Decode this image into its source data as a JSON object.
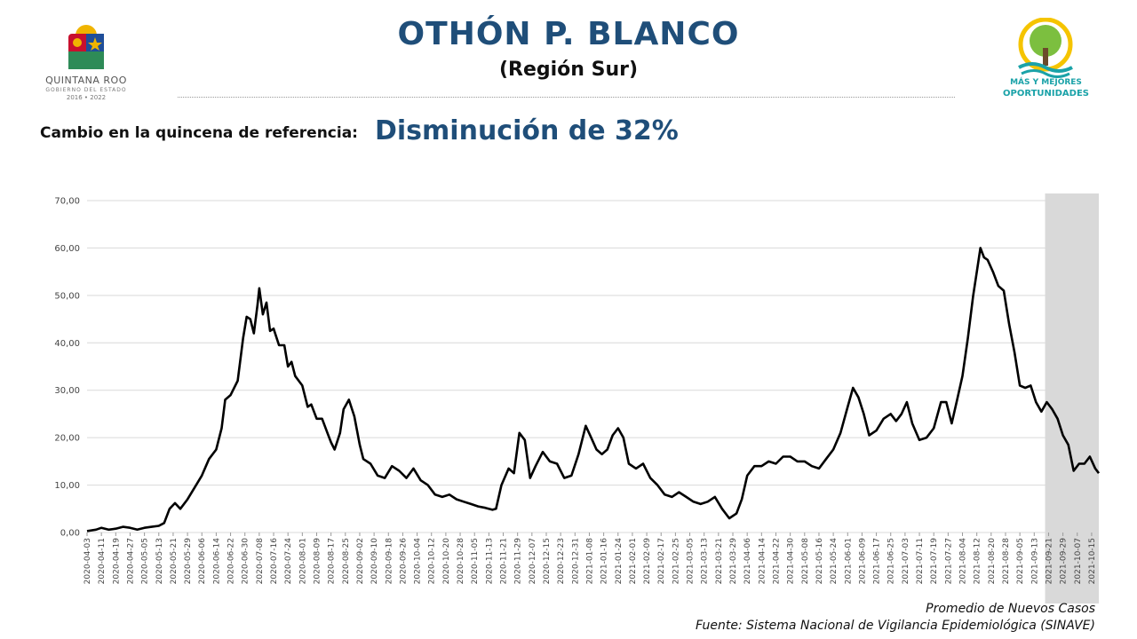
{
  "header": {
    "title": "OTHÓN P. BLANCO",
    "subtitle": "(Región Sur)"
  },
  "left_logo": {
    "brand": "QUINTANA ROO",
    "brand_sub": "GOBIERNO DEL ESTADO",
    "years": "2016 • 2022",
    "icon": "state-coat-of-arms-icon"
  },
  "right_logo": {
    "line1": "MÁS Y MEJORES",
    "line2": "OPORTUNIDADES",
    "icon": "tree-sun-logo-icon"
  },
  "change": {
    "label": "Cambio en la quincena de referencia:",
    "value": "Disminución de 32%"
  },
  "footer": {
    "series_label": "Promedio de Nuevos Casos",
    "source": "Fuente: Sistema Nacional de Vigilancia Epidemiológica (SINAVE)"
  },
  "colors": {
    "title": "#1f4e79",
    "line": "#000000",
    "grid": "#d9d9d9",
    "shade": "#d9d9d9",
    "logo_accent": "#1aa2a8"
  },
  "chart_data": {
    "type": "line",
    "title": "",
    "xlabel": "",
    "ylabel": "",
    "ylim": [
      0,
      70
    ],
    "yticks": [
      "0,00",
      "10,00",
      "20,00",
      "30,00",
      "40,00",
      "50,00",
      "60,00",
      "70,00"
    ],
    "grid": true,
    "legend": "none",
    "shaded_region": {
      "from": "2021-09-25",
      "to": "2021-10-19"
    },
    "x_ticks": [
      "2020-04-03",
      "2020-04-11",
      "2020-04-19",
      "2020-04-27",
      "2020-05-05",
      "2020-05-13",
      "2020-05-21",
      "2020-05-29",
      "2020-06-06",
      "2020-06-14",
      "2020-06-22",
      "2020-06-30",
      "2020-07-08",
      "2020-07-16",
      "2020-07-24",
      "2020-08-01",
      "2020-08-09",
      "2020-08-17",
      "2020-08-25",
      "2020-09-02",
      "2020-09-10",
      "2020-09-18",
      "2020-09-26",
      "2020-10-04",
      "2020-10-12",
      "2020-10-20",
      "2020-10-28",
      "2020-11-05",
      "2020-11-13",
      "2020-11-21",
      "2020-11-29",
      "2020-12-07",
      "2020-12-15",
      "2020-12-23",
      "2020-12-31",
      "2021-01-08",
      "2021-01-16",
      "2021-01-24",
      "2021-02-01",
      "2021-02-09",
      "2021-02-17",
      "2021-02-25",
      "2021-03-05",
      "2021-03-13",
      "2021-03-21",
      "2021-03-29",
      "2021-04-06",
      "2021-04-14",
      "2021-04-22",
      "2021-04-30",
      "2021-05-08",
      "2021-05-16",
      "2021-05-24",
      "2021-06-01",
      "2021-06-09",
      "2021-06-17",
      "2021-06-25",
      "2021-07-03",
      "2021-07-11",
      "2021-07-19",
      "2021-07-27",
      "2021-08-04",
      "2021-08-12",
      "2021-08-20",
      "2021-08-28",
      "2021-09-05",
      "2021-09-13",
      "2021-09-21",
      "2021-09-29",
      "2021-10-07",
      "2021-10-15"
    ],
    "series": [
      {
        "points": [
          [
            "2020-04-03",
            0.3
          ],
          [
            "2020-04-08",
            0.6
          ],
          [
            "2020-04-11",
            1.0
          ],
          [
            "2020-04-15",
            0.6
          ],
          [
            "2020-04-19",
            0.8
          ],
          [
            "2020-04-23",
            1.2
          ],
          [
            "2020-04-27",
            1.0
          ],
          [
            "2020-05-01",
            0.6
          ],
          [
            "2020-05-05",
            1.0
          ],
          [
            "2020-05-09",
            1.2
          ],
          [
            "2020-05-13",
            1.4
          ],
          [
            "2020-05-16",
            2.0
          ],
          [
            "2020-05-19",
            5.0
          ],
          [
            "2020-05-22",
            6.2
          ],
          [
            "2020-05-25",
            5.0
          ],
          [
            "2020-05-29",
            7.0
          ],
          [
            "2020-06-02",
            9.5
          ],
          [
            "2020-06-06",
            12.0
          ],
          [
            "2020-06-10",
            15.5
          ],
          [
            "2020-06-14",
            17.5
          ],
          [
            "2020-06-17",
            22.0
          ],
          [
            "2020-06-19",
            28.0
          ],
          [
            "2020-06-22",
            29.0
          ],
          [
            "2020-06-26",
            32.0
          ],
          [
            "2020-06-29",
            41.0
          ],
          [
            "2020-07-01",
            45.5
          ],
          [
            "2020-07-03",
            45.0
          ],
          [
            "2020-07-05",
            42.0
          ],
          [
            "2020-07-07",
            48.0
          ],
          [
            "2020-07-08",
            51.5
          ],
          [
            "2020-07-10",
            46.0
          ],
          [
            "2020-07-12",
            48.5
          ],
          [
            "2020-07-14",
            42.5
          ],
          [
            "2020-07-16",
            43.0
          ],
          [
            "2020-07-19",
            39.5
          ],
          [
            "2020-07-22",
            39.5
          ],
          [
            "2020-07-24",
            35.0
          ],
          [
            "2020-07-26",
            36.0
          ],
          [
            "2020-07-28",
            33.0
          ],
          [
            "2020-08-01",
            31.0
          ],
          [
            "2020-08-04",
            26.5
          ],
          [
            "2020-08-06",
            27.0
          ],
          [
            "2020-08-09",
            24.0
          ],
          [
            "2020-08-12",
            24.0
          ],
          [
            "2020-08-15",
            21.0
          ],
          [
            "2020-08-17",
            19.0
          ],
          [
            "2020-08-19",
            17.5
          ],
          [
            "2020-08-22",
            21.0
          ],
          [
            "2020-08-24",
            26.0
          ],
          [
            "2020-08-27",
            28.0
          ],
          [
            "2020-08-30",
            24.5
          ],
          [
            "2020-09-02",
            18.5
          ],
          [
            "2020-09-04",
            15.5
          ],
          [
            "2020-09-08",
            14.5
          ],
          [
            "2020-09-12",
            12.0
          ],
          [
            "2020-09-16",
            11.5
          ],
          [
            "2020-09-20",
            14.0
          ],
          [
            "2020-09-24",
            13.0
          ],
          [
            "2020-09-28",
            11.5
          ],
          [
            "2020-10-02",
            13.5
          ],
          [
            "2020-10-06",
            11.0
          ],
          [
            "2020-10-10",
            10.0
          ],
          [
            "2020-10-14",
            8.0
          ],
          [
            "2020-10-18",
            7.5
          ],
          [
            "2020-10-22",
            8.0
          ],
          [
            "2020-10-26",
            7.0
          ],
          [
            "2020-10-30",
            6.5
          ],
          [
            "2020-11-03",
            6.0
          ],
          [
            "2020-11-07",
            5.5
          ],
          [
            "2020-11-11",
            5.2
          ],
          [
            "2020-11-15",
            4.8
          ],
          [
            "2020-11-17",
            5.0
          ],
          [
            "2020-11-20",
            10.0
          ],
          [
            "2020-11-24",
            13.5
          ],
          [
            "2020-11-27",
            12.5
          ],
          [
            "2020-11-30",
            21.0
          ],
          [
            "2020-12-03",
            19.5
          ],
          [
            "2020-12-06",
            11.5
          ],
          [
            "2020-12-09",
            14.0
          ],
          [
            "2020-12-13",
            17.0
          ],
          [
            "2020-12-17",
            15.0
          ],
          [
            "2020-12-21",
            14.5
          ],
          [
            "2020-12-25",
            11.5
          ],
          [
            "2020-12-29",
            12.0
          ],
          [
            "2021-01-02",
            16.5
          ],
          [
            "2021-01-06",
            22.5
          ],
          [
            "2021-01-09",
            20.0
          ],
          [
            "2021-01-12",
            17.5
          ],
          [
            "2021-01-15",
            16.5
          ],
          [
            "2021-01-18",
            17.5
          ],
          [
            "2021-01-21",
            20.5
          ],
          [
            "2021-01-24",
            22.0
          ],
          [
            "2021-01-27",
            20.0
          ],
          [
            "2021-01-30",
            14.5
          ],
          [
            "2021-02-03",
            13.5
          ],
          [
            "2021-02-07",
            14.5
          ],
          [
            "2021-02-11",
            11.5
          ],
          [
            "2021-02-15",
            10.0
          ],
          [
            "2021-02-19",
            8.0
          ],
          [
            "2021-02-23",
            7.5
          ],
          [
            "2021-02-27",
            8.5
          ],
          [
            "2021-03-03",
            7.5
          ],
          [
            "2021-03-07",
            6.5
          ],
          [
            "2021-03-11",
            6.0
          ],
          [
            "2021-03-15",
            6.5
          ],
          [
            "2021-03-19",
            7.5
          ],
          [
            "2021-03-23",
            5.0
          ],
          [
            "2021-03-27",
            3.0
          ],
          [
            "2021-03-31",
            4.0
          ],
          [
            "2021-04-03",
            7.0
          ],
          [
            "2021-04-06",
            12.0
          ],
          [
            "2021-04-10",
            14.0
          ],
          [
            "2021-04-14",
            14.0
          ],
          [
            "2021-04-18",
            15.0
          ],
          [
            "2021-04-22",
            14.5
          ],
          [
            "2021-04-26",
            16.0
          ],
          [
            "2021-04-30",
            16.0
          ],
          [
            "2021-05-04",
            15.0
          ],
          [
            "2021-05-08",
            15.0
          ],
          [
            "2021-05-12",
            14.0
          ],
          [
            "2021-05-16",
            13.5
          ],
          [
            "2021-05-20",
            15.5
          ],
          [
            "2021-05-24",
            17.5
          ],
          [
            "2021-05-28",
            21.0
          ],
          [
            "2021-06-01",
            26.5
          ],
          [
            "2021-06-04",
            30.5
          ],
          [
            "2021-06-07",
            28.5
          ],
          [
            "2021-06-10",
            25.0
          ],
          [
            "2021-06-13",
            20.5
          ],
          [
            "2021-06-17",
            21.5
          ],
          [
            "2021-06-21",
            24.0
          ],
          [
            "2021-06-25",
            25.0
          ],
          [
            "2021-06-28",
            23.5
          ],
          [
            "2021-07-01",
            25.0
          ],
          [
            "2021-07-04",
            27.5
          ],
          [
            "2021-07-07",
            23.0
          ],
          [
            "2021-07-11",
            19.5
          ],
          [
            "2021-07-15",
            20.0
          ],
          [
            "2021-07-19",
            22.0
          ],
          [
            "2021-07-23",
            27.5
          ],
          [
            "2021-07-26",
            27.5
          ],
          [
            "2021-07-29",
            23.0
          ],
          [
            "2021-08-01",
            28.0
          ],
          [
            "2021-08-04",
            33.0
          ],
          [
            "2021-08-07",
            41.0
          ],
          [
            "2021-08-10",
            50.0
          ],
          [
            "2021-08-12",
            55.0
          ],
          [
            "2021-08-14",
            60.0
          ],
          [
            "2021-08-16",
            58.0
          ],
          [
            "2021-08-18",
            57.5
          ],
          [
            "2021-08-21",
            55.0
          ],
          [
            "2021-08-24",
            52.0
          ],
          [
            "2021-08-27",
            51.0
          ],
          [
            "2021-08-30",
            44.0
          ],
          [
            "2021-09-02",
            38.0
          ],
          [
            "2021-09-05",
            31.0
          ],
          [
            "2021-09-08",
            30.5
          ],
          [
            "2021-09-11",
            31.0
          ],
          [
            "2021-09-14",
            27.5
          ],
          [
            "2021-09-17",
            25.5
          ],
          [
            "2021-09-20",
            27.5
          ],
          [
            "2021-09-23",
            26.0
          ],
          [
            "2021-09-26",
            24.0
          ],
          [
            "2021-09-29",
            20.5
          ],
          [
            "2021-10-02",
            18.5
          ],
          [
            "2021-10-05",
            13.0
          ],
          [
            "2021-10-08",
            14.5
          ],
          [
            "2021-10-11",
            14.5
          ],
          [
            "2021-10-14",
            16.0
          ],
          [
            "2021-10-17",
            13.5
          ],
          [
            "2021-10-19",
            12.5
          ]
        ]
      }
    ]
  }
}
